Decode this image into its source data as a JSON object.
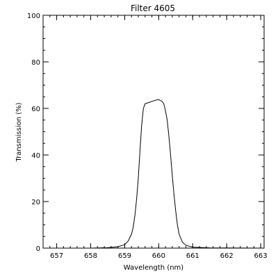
{
  "chart_data": {
    "type": "line",
    "title": "Filter 4605",
    "xlabel": "Wavelength (nm)",
    "ylabel": "Transmission (%)",
    "xlim": [
      656.6,
      663.1
    ],
    "ylim": [
      0,
      100
    ],
    "xticks": [
      657,
      658,
      659,
      660,
      661,
      662,
      663
    ],
    "yticks": [
      0,
      20,
      40,
      60,
      80,
      100
    ],
    "x_minor_step": 0.2,
    "y_minor_step": 5,
    "grid": false,
    "legend": "none",
    "line_color": "#000000",
    "series": [
      {
        "x": [
          656.6,
          658.0,
          658.5,
          658.8,
          659.0,
          659.1,
          659.2,
          659.25,
          659.3,
          659.35,
          659.4,
          659.45,
          659.5,
          659.55,
          659.6,
          659.7,
          659.8,
          659.9,
          660.0,
          660.1,
          660.15,
          660.2,
          660.25,
          660.3,
          660.35,
          660.4,
          660.45,
          660.5,
          660.55,
          660.6,
          660.7,
          660.8,
          661.0,
          661.5,
          663.1
        ],
        "y": [
          0,
          0,
          0.2,
          0.6,
          1.5,
          3,
          6,
          9,
          14,
          21,
          30,
          42,
          53,
          60,
          62,
          62.5,
          63,
          63.5,
          63.8,
          63,
          62,
          59,
          55,
          48,
          40,
          31,
          23,
          16,
          10,
          6,
          2.5,
          1.2,
          0.4,
          0.1,
          0
        ]
      }
    ]
  }
}
